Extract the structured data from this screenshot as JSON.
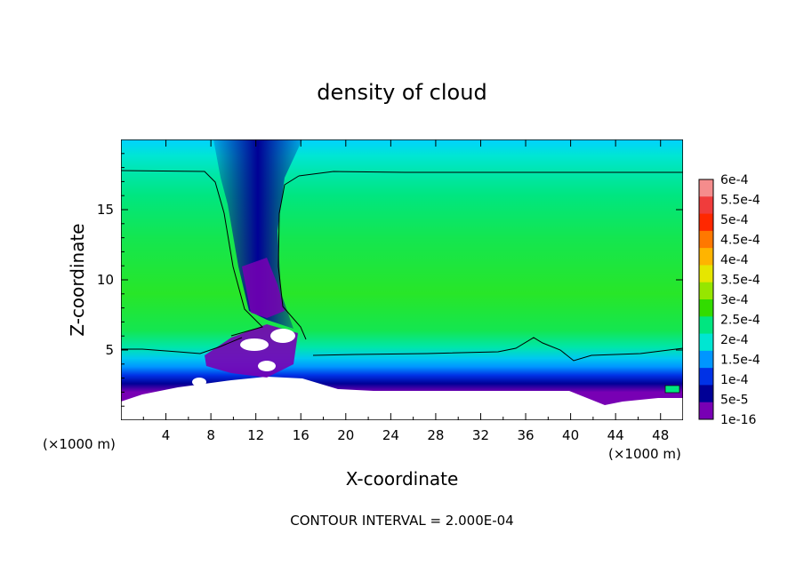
{
  "chart_data": {
    "type": "heatmap",
    "title": "density of cloud",
    "xlabel": "X-coordinate",
    "ylabel": "Z-coordinate",
    "x_unit_left": "(×1000 m)",
    "x_unit_right": "(×1000 m)",
    "xlim": [
      0,
      50
    ],
    "ylim": [
      0,
      20
    ],
    "x_ticks": [
      "4",
      "8",
      "12",
      "16",
      "20",
      "24",
      "28",
      "32",
      "36",
      "40",
      "44",
      "48"
    ],
    "y_ticks": [
      "5",
      "10",
      "15"
    ],
    "footer": "CONTOUR INTERVAL = 2.000E-04",
    "colorbar": {
      "labels": [
        "6e-4",
        "5.5e-4",
        "5e-4",
        "4.5e-4",
        "4e-4",
        "3.5e-4",
        "3e-4",
        "2.5e-4",
        "2e-4",
        "1.5e-4",
        "1e-4",
        "5e-5",
        "1e-16"
      ],
      "levels": [
        0.0006,
        0.00055,
        0.0005,
        0.00045,
        0.0004,
        0.00035,
        0.0003,
        0.00025,
        0.0002,
        0.00015,
        0.0001,
        5e-05,
        1e-16
      ],
      "colors": [
        "#f58c8c",
        "#f03c3c",
        "#ff2800",
        "#ff7800",
        "#ffb400",
        "#e6e600",
        "#96e600",
        "#32dc00",
        "#00e680",
        "#00e6d2",
        "#0096ff",
        "#0032e6",
        "#000096",
        "#7800b4"
      ]
    }
  }
}
